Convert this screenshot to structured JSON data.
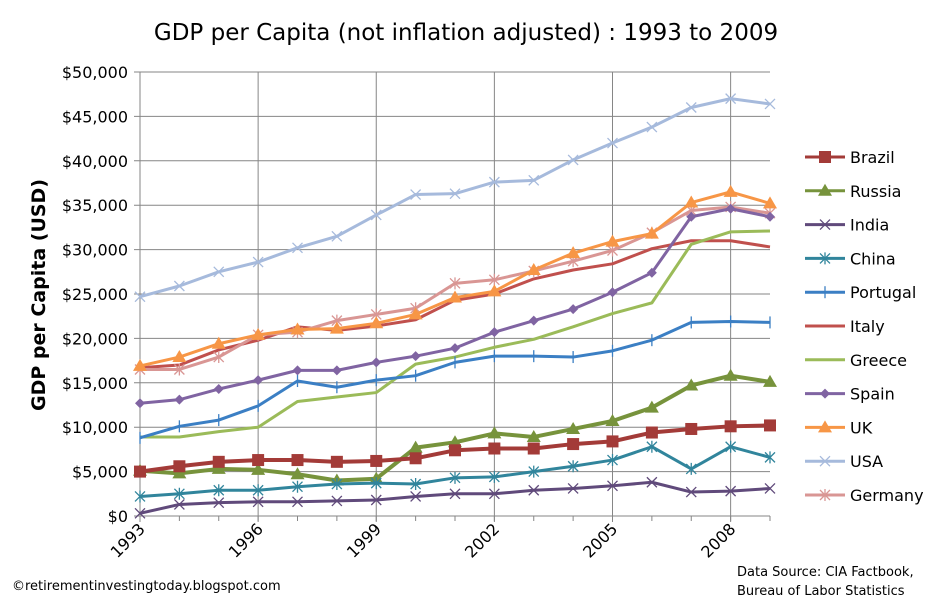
{
  "chart_data": {
    "type": "line",
    "title": "GDP per Capita (not inflation adjusted) : 1993 to 2009",
    "xlabel": "",
    "ylabel": "GDP per Capita (USD)",
    "x": [
      1993,
      1994,
      1995,
      1996,
      1997,
      1998,
      1999,
      2000,
      2001,
      2002,
      2003,
      2004,
      2005,
      2006,
      2007,
      2008,
      2009
    ],
    "x_ticks": [
      "1993",
      "1996",
      "1999",
      "2002",
      "2005",
      "2008"
    ],
    "y_ticks": [
      "$0",
      "$5,000",
      "$10,000",
      "$15,000",
      "$20,000",
      "$25,000",
      "$30,000",
      "$35,000",
      "$40,000",
      "$45,000",
      "$50,000"
    ],
    "ylim": [
      0,
      50000
    ],
    "grid": true,
    "legend_position": "right",
    "series": [
      {
        "name": "Brazil",
        "color": "#A33B38",
        "marker": "square",
        "values": [
          5000,
          5600,
          6100,
          6300,
          6300,
          6100,
          6200,
          6500,
          7400,
          7600,
          7600,
          8100,
          8400,
          9400,
          9800,
          10100,
          10200
        ]
      },
      {
        "name": "Russia",
        "color": "#77933C",
        "marker": "triangle",
        "values": [
          5100,
          4800,
          5300,
          5200,
          4700,
          4000,
          4200,
          7700,
          8300,
          9300,
          8900,
          9800,
          10700,
          12200,
          14700,
          15800,
          15100
        ]
      },
      {
        "name": "India",
        "color": "#604A7B",
        "marker": "x",
        "values": [
          300,
          1300,
          1500,
          1600,
          1600,
          1700,
          1800,
          2200,
          2500,
          2500,
          2900,
          3100,
          3400,
          3800,
          2700,
          2800,
          3100
        ]
      },
      {
        "name": "China",
        "color": "#31859C",
        "marker": "star",
        "values": [
          2200,
          2500,
          2900,
          2900,
          3300,
          3600,
          3700,
          3600,
          4300,
          4400,
          5000,
          5600,
          6300,
          7800,
          5300,
          7800,
          6600
        ]
      },
      {
        "name": "Portugal",
        "color": "#3B7FC4",
        "marker": "plus",
        "values": [
          8800,
          10100,
          10800,
          12400,
          15200,
          14500,
          15300,
          15800,
          17300,
          18000,
          18000,
          17900,
          18600,
          19800,
          21800,
          21900,
          21800
        ]
      },
      {
        "name": "Italy",
        "color": "#C0504D",
        "marker": "none",
        "values": [
          16700,
          17000,
          18700,
          19800,
          21300,
          20900,
          21400,
          22100,
          24300,
          25000,
          26700,
          27700,
          28400,
          30100,
          31000,
          31000,
          30300
        ]
      },
      {
        "name": "Greece",
        "color": "#9BBB59",
        "marker": "none",
        "values": [
          8900,
          8900,
          9500,
          10000,
          12900,
          13400,
          13900,
          17100,
          17900,
          19000,
          19900,
          21300,
          22800,
          24000,
          30600,
          32000,
          32100
        ]
      },
      {
        "name": "Spain",
        "color": "#8064A2",
        "marker": "diamond",
        "values": [
          12700,
          13100,
          14300,
          15300,
          16400,
          16400,
          17300,
          18000,
          18900,
          20700,
          22000,
          23300,
          25200,
          27400,
          33700,
          34600,
          33700
        ]
      },
      {
        "name": "UK",
        "color": "#F79646",
        "marker": "triangle",
        "values": [
          16900,
          17900,
          19400,
          20400,
          21000,
          21100,
          21700,
          22700,
          24600,
          25300,
          27700,
          29600,
          30900,
          31800,
          35300,
          36500,
          35200
        ]
      },
      {
        "name": "USA",
        "color": "#A6BADC",
        "marker": "x",
        "values": [
          24700,
          25900,
          27500,
          28600,
          30200,
          31500,
          33900,
          36200,
          36300,
          37600,
          37800,
          40100,
          42000,
          43800,
          46000,
          47000,
          46400
        ]
      },
      {
        "name": "Germany",
        "color": "#D99694",
        "marker": "star",
        "values": [
          16500,
          16500,
          17900,
          20400,
          20700,
          22000,
          22700,
          23400,
          26200,
          26600,
          27600,
          28700,
          29900,
          31900,
          34400,
          34800,
          34100
        ]
      }
    ]
  },
  "footer": {
    "copyright": "©retirementinvestingtoday.blogspot.com",
    "source_line1": "Data Source: CIA Factbook,",
    "source_line2": "Bureau of Labor Statistics"
  }
}
